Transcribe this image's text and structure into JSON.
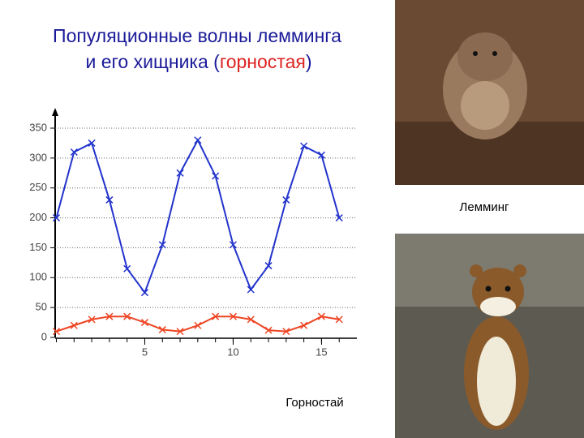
{
  "slide": {
    "title_line1": "Популяционные волны лемминга",
    "title_line2_start": "и его хищника (",
    "title_highlight": "горностая",
    "title_line2_end": ")",
    "caption_top": "Лемминг",
    "caption_bottom": "Горностай"
  },
  "chart_data": {
    "type": "line",
    "x": [
      0,
      1,
      2,
      3,
      4,
      5,
      6,
      7,
      8,
      9,
      10,
      11,
      12,
      13,
      14,
      15,
      16
    ],
    "series": [
      {
        "color": "#2233cc",
        "values": [
          200,
          310,
          325,
          230,
          115,
          75,
          155,
          275,
          330,
          270,
          155,
          80,
          120,
          230,
          320,
          305,
          200
        ]
      },
      {
        "color": "#ee4422",
        "values": [
          10,
          20,
          30,
          35,
          35,
          25,
          13,
          10,
          20,
          35,
          35,
          30,
          12,
          10,
          20,
          35,
          30
        ]
      }
    ],
    "xlim": [
      0,
      17
    ],
    "xticks": [
      5,
      10,
      15
    ],
    "ylim": [
      0,
      350
    ],
    "yticks": [
      0,
      50,
      100,
      150,
      200,
      250,
      300,
      350
    ],
    "grid": true
  }
}
